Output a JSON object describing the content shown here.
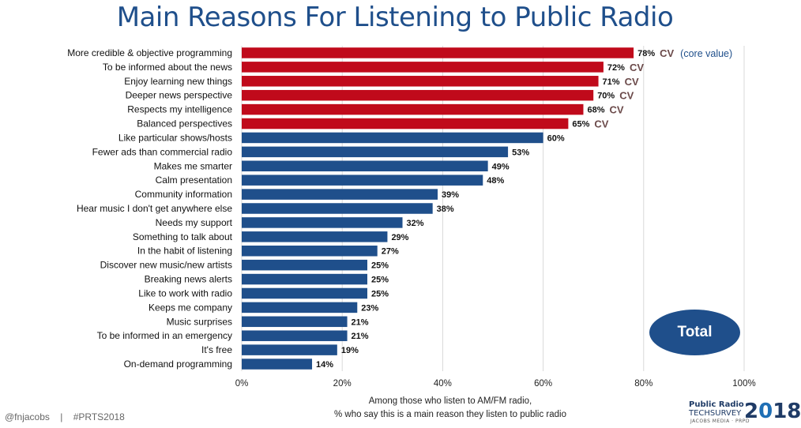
{
  "title": "Main Reasons For Listening to Public Radio",
  "caption": {
    "line1": "Among those who listen to AM/FM radio,",
    "line2": "% who say this is a main reason they listen to public radio"
  },
  "footer": {
    "handle": "@fnjacobs",
    "separator": "|",
    "hashtag": "#PRTS2018"
  },
  "badge": "Total",
  "logo": {
    "line1": "Public Radio",
    "line2": "TECHSURVEY",
    "year_prefix": "2",
    "year_middle": "0",
    "year_suffix": "18",
    "tagline": "JACOBS MEDIA · PRPD"
  },
  "colors": {
    "core_value": "#c00a1b",
    "other": "#1f4f8b",
    "cv_label": "#6b4a4a"
  },
  "chart_data": {
    "type": "bar",
    "orientation": "horizontal",
    "title": "Main Reasons For Listening to Public Radio",
    "xlim": [
      0,
      100
    ],
    "xticks": [
      "0%",
      "20%",
      "40%",
      "60%",
      "80%",
      "100%"
    ],
    "grid": true,
    "cv_tag": "CV",
    "core_value_note": "(core value)",
    "categories": [
      "More credible & objective programming",
      "To be informed about the news",
      "Enjoy learning new things",
      "Deeper news perspective",
      "Respects my intelligence",
      "Balanced perspectives",
      "Like particular shows/hosts",
      "Fewer ads than commercial radio",
      "Makes me smarter",
      "Calm presentation",
      "Community information",
      "Hear music I don't get anywhere else",
      "Needs my support",
      "Something to talk about",
      "In the habit of listening",
      "Discover new music/new artists",
      "Breaking news alerts",
      "Like to work with radio",
      "Keeps me company",
      "Music surprises",
      "To be informed in an emergency",
      "It's free",
      "On-demand programming"
    ],
    "values": [
      78,
      72,
      71,
      70,
      68,
      65,
      60,
      53,
      49,
      48,
      39,
      38,
      32,
      29,
      27,
      25,
      25,
      25,
      23,
      21,
      21,
      19,
      14
    ],
    "value_labels": [
      "78%",
      "72%",
      "71%",
      "70%",
      "68%",
      "65%",
      "60%",
      "53%",
      "49%",
      "48%",
      "39%",
      "38%",
      "32%",
      "29%",
      "27%",
      "25%",
      "25%",
      "25%",
      "23%",
      "21%",
      "21%",
      "19%",
      "14%"
    ],
    "core_value": [
      true,
      true,
      true,
      true,
      true,
      true,
      false,
      false,
      false,
      false,
      false,
      false,
      false,
      false,
      false,
      false,
      false,
      false,
      false,
      false,
      false,
      false,
      false
    ]
  }
}
